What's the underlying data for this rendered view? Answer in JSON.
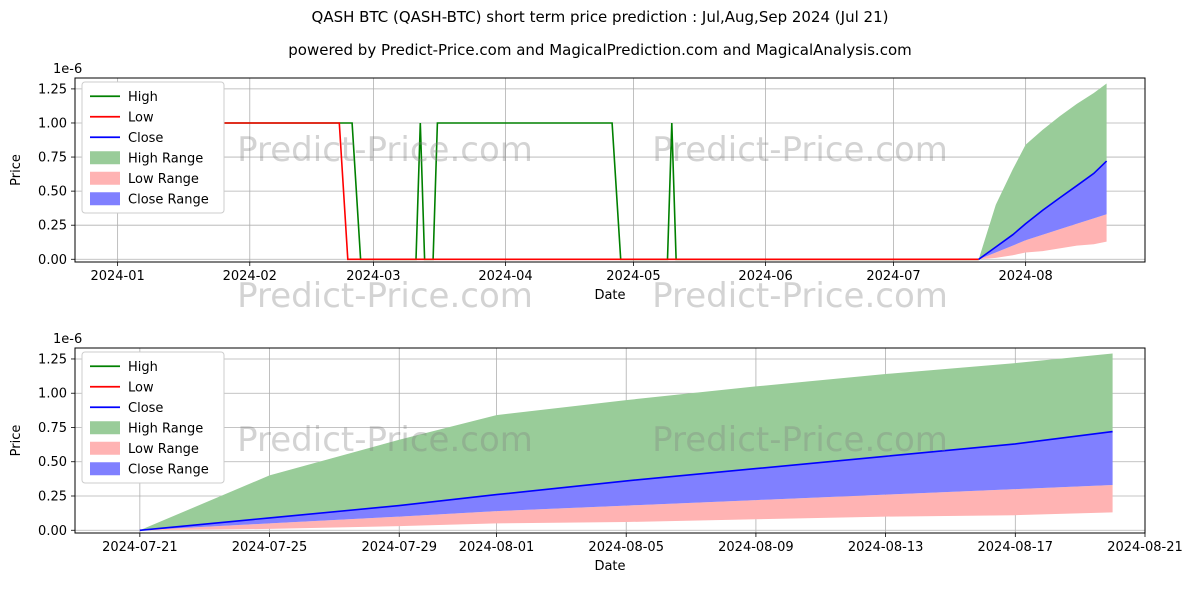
{
  "figure": {
    "title": "QASH BTC (QASH-BTC) short term price prediction : Jul,Aug,Sep 2024 (Jul 21)",
    "subtitle": "powered by Predict-Price.com and MagicalPrediction.com and MagicalAnalysis.com",
    "watermark": "Predict-Price.com"
  },
  "colors": {
    "high": "#008000",
    "low": "#ff0000",
    "close": "#0000ff",
    "high_range": "#99cc99",
    "low_range": "#ffb3b3",
    "close_range": "#8080ff",
    "grid": "#b0b0b0",
    "spine": "#000000"
  },
  "chart_data": [
    {
      "type": "line",
      "ylabel": "Price",
      "xlabel": "Date",
      "offset_label": "1e-6",
      "xlim": [
        "2023-12-22",
        "2024-08-29"
      ],
      "ylim": [
        -0.02,
        1.33
      ],
      "yticks": [
        0,
        0.25,
        0.5,
        0.75,
        1.0,
        1.25
      ],
      "ytick_labels": [
        "0.00",
        "0.25",
        "0.50",
        "0.75",
        "1.00",
        "1.25"
      ],
      "xticks": [
        "2024-01-01",
        "2024-02-01",
        "2024-03-01",
        "2024-04-01",
        "2024-05-01",
        "2024-06-01",
        "2024-07-01",
        "2024-08-01"
      ],
      "xtick_labels": [
        "2024-01",
        "2024-02",
        "2024-03",
        "2024-04",
        "2024-05",
        "2024-06",
        "2024-07",
        "2024-08"
      ],
      "grid": true,
      "legend": {
        "position": "upper-left",
        "entries": [
          {
            "label": "High",
            "kind": "line",
            "color_key": "high"
          },
          {
            "label": "Low",
            "kind": "line",
            "color_key": "low"
          },
          {
            "label": "Close",
            "kind": "line",
            "color_key": "close"
          },
          {
            "label": "High Range",
            "kind": "patch",
            "color_key": "high_range"
          },
          {
            "label": "Low Range",
            "kind": "patch",
            "color_key": "low_range"
          },
          {
            "label": "Close Range",
            "kind": "patch",
            "color_key": "close_range"
          }
        ]
      },
      "bands": [
        {
          "name": "High Range",
          "color_key": "high_range",
          "x": [
            "2024-07-21",
            "2024-07-25",
            "2024-07-29",
            "2024-08-01",
            "2024-08-05",
            "2024-08-09",
            "2024-08-13",
            "2024-08-17",
            "2024-08-20"
          ],
          "upper": [
            0,
            0.4,
            0.66,
            0.84,
            0.95,
            1.05,
            1.14,
            1.22,
            1.29
          ],
          "lower": [
            0,
            0.09,
            0.18,
            0.26,
            0.36,
            0.45,
            0.54,
            0.63,
            0.72
          ]
        },
        {
          "name": "Low Range",
          "color_key": "low_range",
          "x": [
            "2024-07-21",
            "2024-07-25",
            "2024-07-29",
            "2024-08-01",
            "2024-08-05",
            "2024-08-09",
            "2024-08-13",
            "2024-08-17",
            "2024-08-20"
          ],
          "upper": [
            0,
            0.05,
            0.1,
            0.14,
            0.18,
            0.22,
            0.26,
            0.3,
            0.33
          ],
          "lower": [
            0,
            0.01,
            0.03,
            0.05,
            0.06,
            0.08,
            0.1,
            0.11,
            0.13
          ]
        },
        {
          "name": "Close Range",
          "color_key": "close_range",
          "x": [
            "2024-07-21",
            "2024-07-25",
            "2024-07-29",
            "2024-08-01",
            "2024-08-05",
            "2024-08-09",
            "2024-08-13",
            "2024-08-17",
            "2024-08-20"
          ],
          "upper": [
            0,
            0.09,
            0.18,
            0.26,
            0.36,
            0.45,
            0.54,
            0.63,
            0.72
          ],
          "lower": [
            0,
            0.05,
            0.1,
            0.14,
            0.18,
            0.22,
            0.26,
            0.3,
            0.33
          ]
        }
      ],
      "lines": [
        {
          "name": "High",
          "color_key": "high",
          "x": [
            "2023-12-24",
            "2024-02-25",
            "2024-02-27",
            "2024-03-11",
            "2024-03-12",
            "2024-03-13",
            "2024-03-15",
            "2024-03-16",
            "2024-04-26",
            "2024-04-28",
            "2024-05-09",
            "2024-05-10",
            "2024-05-11",
            "2024-07-21"
          ],
          "y": [
            1.0,
            1.0,
            0,
            0,
            1.0,
            0,
            0,
            1.0,
            1.0,
            0,
            0,
            1.0,
            0,
            0
          ]
        },
        {
          "name": "Low",
          "color_key": "low",
          "x": [
            "2023-12-24",
            "2024-02-22",
            "2024-02-24",
            "2024-07-21"
          ],
          "y": [
            1.0,
            1.0,
            0,
            0
          ]
        },
        {
          "name": "Close",
          "color_key": "close",
          "x": [
            "2024-07-21",
            "2024-07-25",
            "2024-07-29",
            "2024-08-01",
            "2024-08-05",
            "2024-08-09",
            "2024-08-13",
            "2024-08-17",
            "2024-08-20"
          ],
          "y": [
            0,
            0.09,
            0.18,
            0.26,
            0.36,
            0.45,
            0.54,
            0.63,
            0.72
          ]
        }
      ]
    },
    {
      "type": "line",
      "ylabel": "Price",
      "xlabel": "Date",
      "offset_label": "1e-6",
      "xlim": [
        "2024-07-19",
        "2024-08-21"
      ],
      "ylim": [
        -0.02,
        1.33
      ],
      "yticks": [
        0,
        0.25,
        0.5,
        0.75,
        1.0,
        1.25
      ],
      "ytick_labels": [
        "0.00",
        "0.25",
        "0.50",
        "0.75",
        "1.00",
        "1.25"
      ],
      "xticks": [
        "2024-07-21",
        "2024-07-25",
        "2024-07-29",
        "2024-08-01",
        "2024-08-05",
        "2024-08-09",
        "2024-08-13",
        "2024-08-17",
        "2024-08-21"
      ],
      "xtick_labels": [
        "2024-07-21",
        "2024-07-25",
        "2024-07-29",
        "2024-08-01",
        "2024-08-05",
        "2024-08-09",
        "2024-08-13",
        "2024-08-17",
        "2024-08-21"
      ],
      "grid": true,
      "legend": {
        "position": "upper-left",
        "entries": [
          {
            "label": "High",
            "kind": "line",
            "color_key": "high"
          },
          {
            "label": "Low",
            "kind": "line",
            "color_key": "low"
          },
          {
            "label": "Close",
            "kind": "line",
            "color_key": "close"
          },
          {
            "label": "High Range",
            "kind": "patch",
            "color_key": "high_range"
          },
          {
            "label": "Low Range",
            "kind": "patch",
            "color_key": "low_range"
          },
          {
            "label": "Close Range",
            "kind": "patch",
            "color_key": "close_range"
          }
        ]
      },
      "bands": [
        {
          "name": "High Range",
          "color_key": "high_range",
          "x": [
            "2024-07-21",
            "2024-07-25",
            "2024-07-29",
            "2024-08-01",
            "2024-08-05",
            "2024-08-09",
            "2024-08-13",
            "2024-08-17",
            "2024-08-20"
          ],
          "upper": [
            0,
            0.4,
            0.66,
            0.84,
            0.95,
            1.05,
            1.14,
            1.22,
            1.29
          ],
          "lower": [
            0,
            0.09,
            0.18,
            0.26,
            0.36,
            0.45,
            0.54,
            0.63,
            0.72
          ]
        },
        {
          "name": "Low Range",
          "color_key": "low_range",
          "x": [
            "2024-07-21",
            "2024-07-25",
            "2024-07-29",
            "2024-08-01",
            "2024-08-05",
            "2024-08-09",
            "2024-08-13",
            "2024-08-17",
            "2024-08-20"
          ],
          "upper": [
            0,
            0.05,
            0.1,
            0.14,
            0.18,
            0.22,
            0.26,
            0.3,
            0.33
          ],
          "lower": [
            0,
            0.01,
            0.03,
            0.05,
            0.06,
            0.08,
            0.1,
            0.11,
            0.13
          ]
        },
        {
          "name": "Close Range",
          "color_key": "close_range",
          "x": [
            "2024-07-21",
            "2024-07-25",
            "2024-07-29",
            "2024-08-01",
            "2024-08-05",
            "2024-08-09",
            "2024-08-13",
            "2024-08-17",
            "2024-08-20"
          ],
          "upper": [
            0,
            0.09,
            0.18,
            0.26,
            0.36,
            0.45,
            0.54,
            0.63,
            0.72
          ],
          "lower": [
            0,
            0.05,
            0.1,
            0.14,
            0.18,
            0.22,
            0.26,
            0.3,
            0.33
          ]
        }
      ],
      "lines": [
        {
          "name": "Close",
          "color_key": "close",
          "x": [
            "2024-07-21",
            "2024-07-25",
            "2024-07-29",
            "2024-08-01",
            "2024-08-05",
            "2024-08-09",
            "2024-08-13",
            "2024-08-17",
            "2024-08-20"
          ],
          "y": [
            0,
            0.09,
            0.18,
            0.26,
            0.36,
            0.45,
            0.54,
            0.63,
            0.72
          ]
        }
      ]
    }
  ]
}
